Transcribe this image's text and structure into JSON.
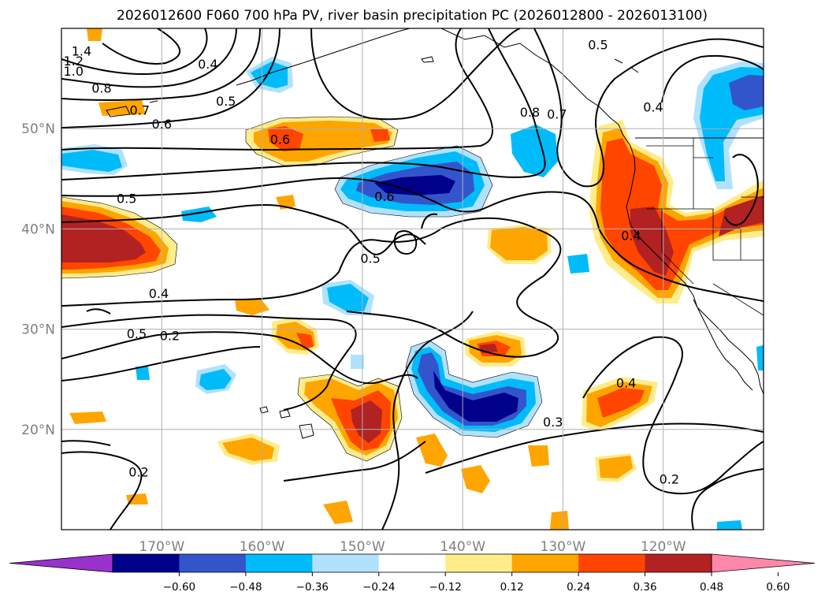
{
  "title": "2026012600 F060 700 hPa PV, river basin precipitation PC (2026012800 - 2026013100)",
  "map": {
    "projection": "PlateCarree",
    "lon_range": [
      -180,
      -110
    ],
    "lat_range": [
      10,
      60
    ],
    "lon_ticks": [
      {
        "value": -170,
        "label": "170°W"
      },
      {
        "value": -160,
        "label": "160°W"
      },
      {
        "value": -150,
        "label": "150°W"
      },
      {
        "value": -140,
        "label": "140°W"
      },
      {
        "value": -130,
        "label": "130°W"
      },
      {
        "value": -120,
        "label": "120°W"
      }
    ],
    "lat_ticks": [
      {
        "value": 50,
        "label": "50°N"
      },
      {
        "value": 40,
        "label": "40°N"
      },
      {
        "value": 30,
        "label": "30°N"
      },
      {
        "value": 20,
        "label": "20°N"
      }
    ],
    "grid": true,
    "tick_color": "#808080",
    "grid_color": "#b0b0b0"
  },
  "colorbar": {
    "extend": "both",
    "colors": [
      "#9932cc",
      "#00008b",
      "#3355cc",
      "#00bbf9",
      "#b0e2ff",
      "#ffffff",
      "#ffec8b",
      "#ffa500",
      "#ff4500",
      "#b22222",
      "#ff88aa"
    ],
    "ticks": [
      "−0.60",
      "−0.48",
      "−0.36",
      "−0.24",
      "−0.12",
      "0.12",
      "0.24",
      "0.36",
      "0.48",
      "0.60"
    ]
  },
  "contour_labels": [
    {
      "text": "1.4",
      "lon": -178,
      "lat": 57.3
    },
    {
      "text": "1.2",
      "lon": -178.8,
      "lat": 56.3
    },
    {
      "text": "1.0",
      "lon": -178.8,
      "lat": 55.3
    },
    {
      "text": "0.8",
      "lon": -176,
      "lat": 53.6
    },
    {
      "text": "0.7",
      "lon": -172.2,
      "lat": 51.4
    },
    {
      "text": "0.6",
      "lon": -170,
      "lat": 50
    },
    {
      "text": "0.5",
      "lon": -173.5,
      "lat": 42.6
    },
    {
      "text": "0.4",
      "lon": -170.3,
      "lat": 33.1
    },
    {
      "text": "0.5",
      "lon": -172.5,
      "lat": 29.1
    },
    {
      "text": "0.2",
      "lon": -169.2,
      "lat": 28.9
    },
    {
      "text": "0.2",
      "lon": -172.3,
      "lat": 15.3
    },
    {
      "text": "0.4",
      "lon": -165.4,
      "lat": 56
    },
    {
      "text": "0.5",
      "lon": -163.6,
      "lat": 52.3
    },
    {
      "text": "0.6",
      "lon": -158.2,
      "lat": 48.5
    },
    {
      "text": "0.6",
      "lon": -147.8,
      "lat": 42.8
    },
    {
      "text": "0.5",
      "lon": -149.2,
      "lat": 36.6
    },
    {
      "text": "0.8",
      "lon": -133.3,
      "lat": 51.2
    },
    {
      "text": "0.7",
      "lon": -130.6,
      "lat": 51
    },
    {
      "text": "0.5",
      "lon": -126.5,
      "lat": 57.9
    },
    {
      "text": "0.4",
      "lon": -121,
      "lat": 51.7
    },
    {
      "text": "0.4",
      "lon": -123.2,
      "lat": 38.9
    },
    {
      "text": "0.4",
      "lon": -123.7,
      "lat": 24.2
    },
    {
      "text": "0.3",
      "lon": -131,
      "lat": 20.3
    },
    {
      "text": "0.2",
      "lon": -119.4,
      "lat": 14.6
    }
  ]
}
